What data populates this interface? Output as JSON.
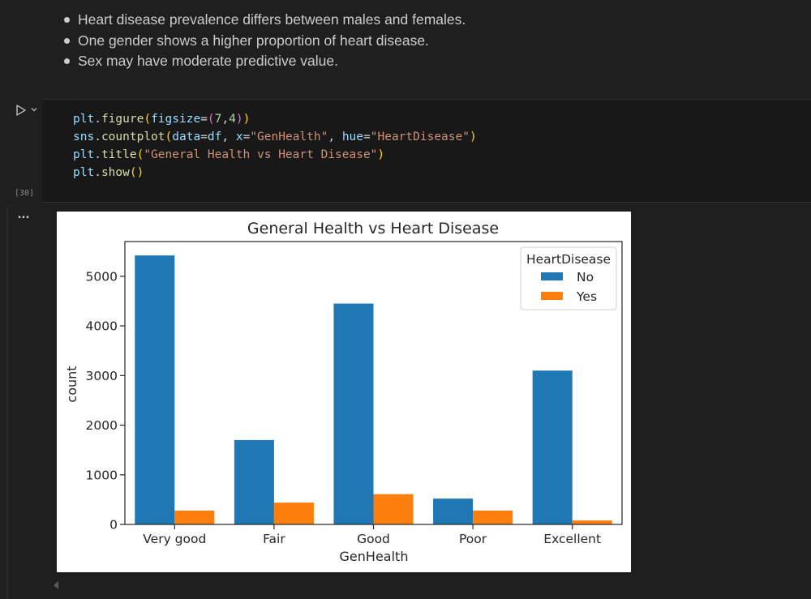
{
  "markdown": {
    "bullets": [
      "Heart disease prevalence differs between males and females.",
      "One gender shows a higher proportion of heart disease.",
      "Sex may have moderate predictive value."
    ]
  },
  "code_cell": {
    "execution_count": "[30]",
    "icons": {
      "run": "play-icon",
      "menu": "chevron-down-icon"
    },
    "tokens": {
      "l1": [
        "plt",
        ".",
        "figure",
        "(",
        "figsize",
        "=",
        "(",
        "7",
        ",",
        "4",
        ")",
        ")"
      ],
      "l2": [
        "sns",
        ".",
        "countplot",
        "(",
        "data",
        "=",
        "df",
        ", ",
        "x",
        "=",
        "\"GenHealth\"",
        ", ",
        "hue",
        "=",
        "\"HeartDisease\"",
        ")"
      ],
      "l3": [
        "plt",
        ".",
        "title",
        "(",
        "\"General Health vs Heart Disease\"",
        ")"
      ],
      "l4": [
        "plt",
        ".",
        "show",
        "(",
        ")"
      ]
    }
  },
  "output": {
    "menu_label": "...",
    "icons": {
      "menu": "ellipsis-icon",
      "scroll": "scroll-left-icon"
    }
  },
  "chart_data": {
    "type": "bar",
    "title": "General Health vs Heart Disease",
    "xlabel": "GenHealth",
    "ylabel": "count",
    "categories": [
      "Very good",
      "Fair",
      "Good",
      "Poor",
      "Excellent"
    ],
    "series": [
      {
        "name": "No",
        "values": [
          5420,
          1700,
          4450,
          520,
          3100
        ],
        "color": "#1f77b4"
      },
      {
        "name": "Yes",
        "values": [
          280,
          440,
          610,
          280,
          80
        ],
        "color": "#ff7f0e"
      }
    ],
    "yticks": [
      0,
      1000,
      2000,
      3000,
      4000,
      5000
    ],
    "ylim": [
      0,
      5700
    ],
    "legend": {
      "title": "HeartDisease",
      "placement": "top-right"
    },
    "grid": false
  }
}
